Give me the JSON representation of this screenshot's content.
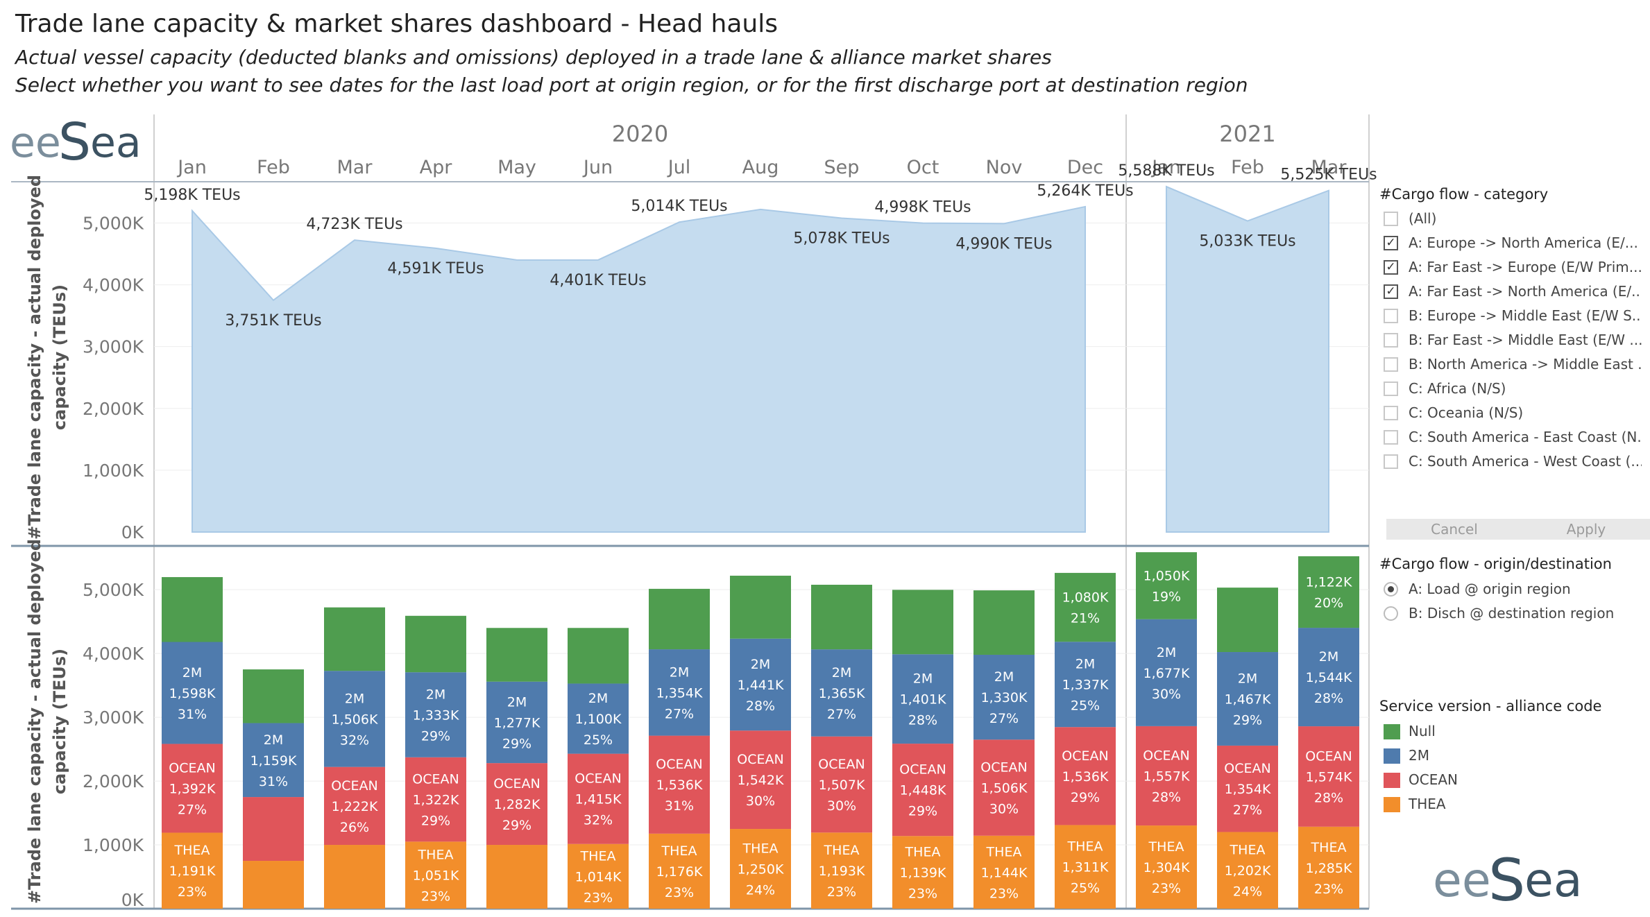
{
  "header": {
    "title": "Trade lane capacity & market shares dashboard - Head hauls",
    "subtitle1": "Actual vessel capacity (deducted blanks and omissions) deployed in a trade lane & alliance market shares",
    "subtitle2": "Select whether you want to see dates for the last load port at origin region, or for the first discharge port at destination region"
  },
  "brand": {
    "logo_text": "eeSea",
    "logo_color": "#4a6172",
    "logo_accent": "#7b8e9c"
  },
  "filters": {
    "category": {
      "title": "#Cargo flow - category",
      "items": [
        {
          "label": "(All)",
          "checked": false
        },
        {
          "label": "A: Europe -> North America (E/...",
          "checked": true
        },
        {
          "label": "A: Far East -> Europe (E/W Prim...",
          "checked": true
        },
        {
          "label": "A: Far East -> North America (E/...",
          "checked": true
        },
        {
          "label": "B: Europe -> Middle East (E/W S...",
          "checked": false
        },
        {
          "label": "B: Far East -> Middle East (E/W ...",
          "checked": false
        },
        {
          "label": "B: North America -> Middle East ...",
          "checked": false
        },
        {
          "label": "C: Africa (N/S)",
          "checked": false
        },
        {
          "label": "C: Oceania (N/S)",
          "checked": false
        },
        {
          "label": "C: South America - East Coast (N...",
          "checked": false
        },
        {
          "label": "C: South America - West Coast (...",
          "checked": false
        }
      ],
      "cancel_label": "Cancel",
      "apply_label": "Apply"
    },
    "origin_destination": {
      "title": "#Cargo flow - origin/destination",
      "options": [
        {
          "label": "A: Load @ origin region",
          "selected": true
        },
        {
          "label": "B: Disch @ destination region",
          "selected": false
        }
      ]
    },
    "legend": {
      "title": "Service version - alliance code",
      "items": [
        {
          "label": "Null",
          "color": "#4f9d4f"
        },
        {
          "label": "2M",
          "color": "#4f7bad"
        },
        {
          "label": "OCEAN",
          "color": "#e0555a"
        },
        {
          "label": "THEA",
          "color": "#f28e2b"
        }
      ]
    }
  },
  "chart_data": [
    {
      "type": "area",
      "years": [
        "2020",
        "2021"
      ],
      "categories": [
        "Jan",
        "Feb",
        "Mar",
        "Apr",
        "May",
        "Jun",
        "Jul",
        "Aug",
        "Sep",
        "Oct",
        "Nov",
        "Dec",
        "Jan",
        "Feb",
        "Mar"
      ],
      "values": [
        5198,
        3751,
        4723,
        4591,
        4401,
        4401,
        5014,
        5220,
        5078,
        4998,
        4990,
        5264,
        5588,
        5033,
        5525
      ],
      "data_labels": [
        "5,198K TEUs",
        "3,751K TEUs",
        "4,723K TEUs",
        "4,591K TEUs",
        "",
        "4,401K TEUs",
        "5,014K TEUs",
        "",
        "5,078K TEUs",
        "4,998K TEUs",
        "4,990K TEUs",
        "5,264K TEUs",
        "5,588K TEUs",
        "5,033K TEUs",
        "5,525K TEUs"
      ],
      "ylabel": "#Trade lane capacity - actual deployed capacity (TEUs)",
      "yticks": [
        "0K",
        "1,000K",
        "2,000K",
        "3,000K",
        "4,000K",
        "5,000K"
      ],
      "ylim": [
        0,
        5600
      ],
      "color": "#c5dcef"
    },
    {
      "type": "bar",
      "stacked": true,
      "categories": [
        "Jan",
        "Feb",
        "Mar",
        "Apr",
        "May",
        "Jun",
        "Jul",
        "Aug",
        "Sep",
        "Oct",
        "Nov",
        "Dec",
        "Jan",
        "Feb",
        "Mar"
      ],
      "ylabel": "#Trade lane capacity - actual deployed capacity (TEUs)",
      "yticks": [
        "0K",
        "1,000K",
        "2,000K",
        "3,000K",
        "4,000K",
        "5,000K"
      ],
      "ylim": [
        0,
        5600
      ],
      "series": [
        {
          "name": "THEA",
          "color": "#f28e2b",
          "values": [
            1191,
            750,
            1000,
            1051,
            1000,
            1014,
            1176,
            1250,
            1193,
            1139,
            1144,
            1311,
            1304,
            1202,
            1285
          ],
          "labels": [
            [
              "THEA",
              "1,191K",
              "23%"
            ],
            [],
            [],
            [
              "THEA",
              "1,051K",
              "23%"
            ],
            [],
            [
              "THEA",
              "1,014K",
              "23%"
            ],
            [
              "THEA",
              "1,176K",
              "23%"
            ],
            [
              "THEA",
              "1,250K",
              "24%"
            ],
            [
              "THEA",
              "1,193K",
              "23%"
            ],
            [
              "THEA",
              "1,139K",
              "23%"
            ],
            [
              "THEA",
              "1,144K",
              "23%"
            ],
            [
              "THEA",
              "1,311K",
              "25%"
            ],
            [
              "THEA",
              "1,304K",
              "23%"
            ],
            [
              "THEA",
              "1,202K",
              "24%"
            ],
            [
              "THEA",
              "1,285K",
              "23%"
            ]
          ]
        },
        {
          "name": "OCEAN",
          "color": "#e0555a",
          "values": [
            1392,
            1000,
            1222,
            1322,
            1282,
            1415,
            1536,
            1542,
            1507,
            1448,
            1506,
            1536,
            1557,
            1354,
            1574
          ],
          "labels": [
            [
              "OCEAN",
              "1,392K",
              "27%"
            ],
            [],
            [
              "OCEAN",
              "1,222K",
              "26%"
            ],
            [
              "OCEAN",
              "1,322K",
              "29%"
            ],
            [
              "OCEAN",
              "1,282K",
              "29%"
            ],
            [
              "OCEAN",
              "1,415K",
              "32%"
            ],
            [
              "OCEAN",
              "1,536K",
              "31%"
            ],
            [
              "OCEAN",
              "1,542K",
              "30%"
            ],
            [
              "OCEAN",
              "1,507K",
              "30%"
            ],
            [
              "OCEAN",
              "1,448K",
              "29%"
            ],
            [
              "OCEAN",
              "1,506K",
              "30%"
            ],
            [
              "OCEAN",
              "1,536K",
              "29%"
            ],
            [
              "OCEAN",
              "1,557K",
              "28%"
            ],
            [
              "OCEAN",
              "1,354K",
              "27%"
            ],
            [
              "OCEAN",
              "1,574K",
              "28%"
            ]
          ]
        },
        {
          "name": "2M",
          "color": "#4f7bad",
          "values": [
            1598,
            1159,
            1506,
            1333,
            1277,
            1100,
            1354,
            1441,
            1365,
            1401,
            1330,
            1337,
            1677,
            1467,
            1544
          ],
          "labels": [
            [
              "2M",
              "1,598K",
              "31%"
            ],
            [
              "2M",
              "1,159K",
              "31%"
            ],
            [
              "2M",
              "1,506K",
              "32%"
            ],
            [
              "2M",
              "1,333K",
              "29%"
            ],
            [
              "2M",
              "1,277K",
              "29%"
            ],
            [
              "2M",
              "1,100K",
              "25%"
            ],
            [
              "2M",
              "1,354K",
              "27%"
            ],
            [
              "2M",
              "1,441K",
              "28%"
            ],
            [
              "2M",
              "1,365K",
              "27%"
            ],
            [
              "2M",
              "1,401K",
              "28%"
            ],
            [
              "2M",
              "1,330K",
              "27%"
            ],
            [
              "2M",
              "1,337K",
              "25%"
            ],
            [
              "2M",
              "1,677K",
              "30%"
            ],
            [
              "2M",
              "1,467K",
              "29%"
            ],
            [
              "2M",
              "1,544K",
              "28%"
            ]
          ]
        },
        {
          "name": "Null",
          "color": "#4f9d4f",
          "values": [
            1017,
            842,
            995,
            885,
            842,
            872,
            948,
            987,
            1013,
            1010,
            1010,
            1080,
            1050,
            1010,
            1122
          ],
          "labels": [
            [],
            [],
            [],
            [],
            [],
            [],
            [],
            [],
            [],
            [],
            [],
            [
              "1,080K",
              "21%"
            ],
            [
              "1,050K",
              "19%"
            ],
            [],
            [
              "1,122K",
              "20%"
            ]
          ]
        }
      ]
    }
  ]
}
